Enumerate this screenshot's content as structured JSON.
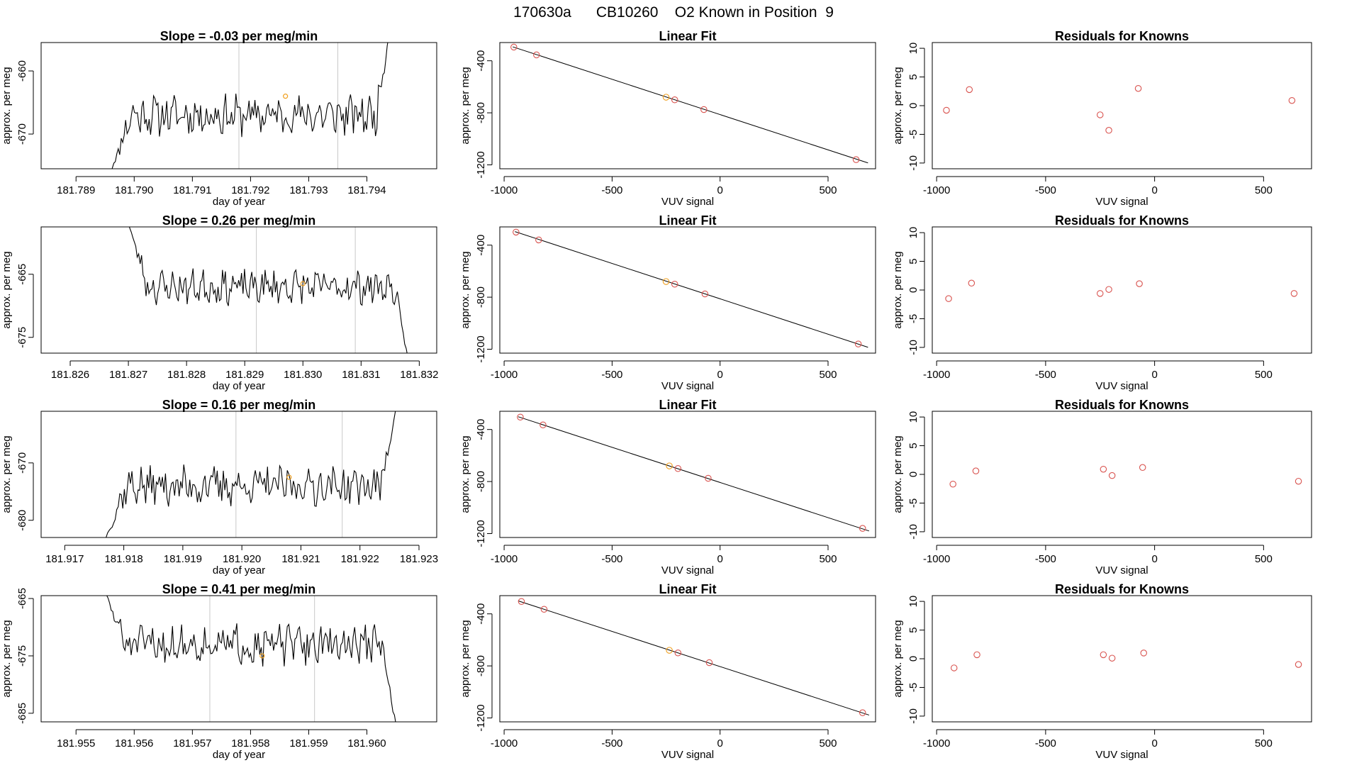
{
  "figure": {
    "title": "170630a      CB10260    O2 Known in Position  9"
  },
  "colors": {
    "line": "#000000",
    "point": "#d9534f",
    "highlight": "#f0a020",
    "grid": "#c8c8c8"
  },
  "chart_data": [
    {
      "type": "line",
      "title": "Slope =  -0.03  per meg/min",
      "xlabel": "day of year",
      "ylabel": "approx. per meg",
      "xlim": [
        181.7884,
        181.7952
      ],
      "ylim": [
        -675.5,
        -655.5
      ],
      "xticks": [
        181.789,
        181.79,
        181.791,
        181.792,
        181.793,
        181.794
      ],
      "xtick_labels": [
        "181.789",
        "181.790",
        "181.791",
        "181.792",
        "181.793",
        "181.794"
      ],
      "yticks": [
        -660,
        -670
      ],
      "ytick_labels": [
        "-660",
        "-670"
      ],
      "vlines": [
        181.7918,
        181.7935
      ],
      "x_range": [
        181.7896,
        181.7944
      ],
      "baseline": -667,
      "noise": 2.6,
      "start": -676,
      "end": -653,
      "highlight": {
        "x": 181.7926,
        "y": -664
      },
      "seed": 11
    },
    {
      "type": "line",
      "title": "Slope =  0.26  per meg/min",
      "xlabel": "day of year",
      "ylabel": "approx. per meg",
      "xlim": [
        181.8255,
        181.8323
      ],
      "ylim": [
        -677.5,
        -657.5
      ],
      "xticks": [
        181.826,
        181.827,
        181.828,
        181.829,
        181.83,
        181.831,
        181.832
      ],
      "xtick_labels": [
        "181.826",
        "181.827",
        "181.828",
        "181.829",
        "181.830",
        "181.831",
        "181.832"
      ],
      "yticks": [
        -665,
        -675
      ],
      "ytick_labels": [
        "-665",
        "-675"
      ],
      "vlines": [
        181.8292,
        181.8309
      ],
      "x_range": [
        181.827,
        181.8318
      ],
      "baseline": -667,
      "noise": 2.2,
      "start": -657,
      "end": -678,
      "highlight": {
        "x": 181.83,
        "y": -666.5
      },
      "seed": 23
    },
    {
      "type": "line",
      "title": "Slope =  0.16  per meg/min",
      "xlabel": "day of year",
      "ylabel": "approx. per meg",
      "xlim": [
        181.9166,
        181.9233
      ],
      "ylim": [
        -683,
        -661
      ],
      "xticks": [
        181.917,
        181.918,
        181.919,
        181.92,
        181.921,
        181.922,
        181.923
      ],
      "xtick_labels": [
        "181.917",
        "181.918",
        "181.919",
        "181.920",
        "181.921",
        "181.922",
        "181.923"
      ],
      "yticks": [
        -670,
        -680
      ],
      "ytick_labels": [
        "-670",
        "-680"
      ],
      "vlines": [
        181.9199,
        181.9217
      ],
      "x_range": [
        181.9177,
        181.9226
      ],
      "baseline": -674,
      "noise": 2.8,
      "start": -683,
      "end": -661,
      "highlight": {
        "x": 181.9208,
        "y": -672.5
      },
      "seed": 37
    },
    {
      "type": "line",
      "title": "Slope =  0.41  per meg/min",
      "xlabel": "day of year",
      "ylabel": "approx. per meg",
      "xlim": [
        181.9544,
        181.9612
      ],
      "ylim": [
        -686.5,
        -664.5
      ],
      "xticks": [
        181.955,
        181.956,
        181.957,
        181.958,
        181.959,
        181.96
      ],
      "xtick_labels": [
        "181.955",
        "181.956",
        "181.957",
        "181.958",
        "181.959",
        "181.960"
      ],
      "yticks": [
        -665,
        -675,
        -685
      ],
      "ytick_labels": [
        "-665",
        "-675",
        "-685"
      ],
      "vlines": [
        181.9573,
        181.9591
      ],
      "x_range": [
        181.9555,
        181.9605
      ],
      "baseline": -673,
      "noise": 2.8,
      "start": -664,
      "end": -687,
      "highlight": {
        "x": 181.9582,
        "y": -675
      },
      "seed": 51
    },
    {
      "type": "scatter",
      "title": "Linear Fit",
      "xlabel": "VUV signal",
      "ylabel": "approx. per meg",
      "xlim": [
        -1020,
        720
      ],
      "ylim": [
        -1230,
        -260
      ],
      "xticks": [
        -1000,
        -500,
        0,
        500
      ],
      "xtick_labels": [
        "-1000",
        "-500",
        "0",
        "500"
      ],
      "yticks": [
        -400,
        -800,
        -1200
      ],
      "ytick_labels": [
        "-400",
        "-800",
        "-1200"
      ],
      "points": [
        [
          -955,
          -295
        ],
        [
          -850,
          -355
        ],
        [
          -250,
          -680
        ],
        [
          -210,
          -700
        ],
        [
          -75,
          -775
        ],
        [
          630,
          -1160
        ]
      ],
      "highlight_index": 2,
      "fit_line": [
        [
          -960,
          -293
        ],
        [
          685,
          -1185
        ]
      ]
    },
    {
      "type": "scatter",
      "title": "Linear Fit",
      "xlabel": "VUV signal",
      "ylabel": "approx. per meg",
      "xlim": [
        -1020,
        720
      ],
      "ylim": [
        -1230,
        -260
      ],
      "xticks": [
        -1000,
        -500,
        0,
        500
      ],
      "xtick_labels": [
        "-1000",
        "-500",
        "0",
        "500"
      ],
      "yticks": [
        -400,
        -800,
        -1200
      ],
      "ytick_labels": [
        "-400",
        "-800",
        "-1200"
      ],
      "points": [
        [
          -945,
          -300
        ],
        [
          -840,
          -360
        ],
        [
          -250,
          -680
        ],
        [
          -210,
          -700
        ],
        [
          -70,
          -775
        ],
        [
          640,
          -1160
        ]
      ],
      "highlight_index": 2,
      "fit_line": [
        [
          -950,
          -296
        ],
        [
          685,
          -1185
        ]
      ]
    },
    {
      "type": "scatter",
      "title": "Linear Fit",
      "xlabel": "VUV signal",
      "ylabel": "approx. per meg",
      "xlim": [
        -1020,
        720
      ],
      "ylim": [
        -1230,
        -260
      ],
      "xticks": [
        -1000,
        -500,
        0,
        500
      ],
      "xtick_labels": [
        "-1000",
        "-500",
        "0",
        "500"
      ],
      "yticks": [
        -400,
        -800,
        -1200
      ],
      "ytick_labels": [
        "-400",
        "-800",
        "-1200"
      ],
      "points": [
        [
          -925,
          -305
        ],
        [
          -820,
          -365
        ],
        [
          -235,
          -680
        ],
        [
          -195,
          -700
        ],
        [
          -55,
          -775
        ],
        [
          660,
          -1160
        ]
      ],
      "highlight_index": 2,
      "fit_line": [
        [
          -935,
          -302
        ],
        [
          690,
          -1180
        ]
      ]
    },
    {
      "type": "scatter",
      "title": "Linear Fit",
      "xlabel": "VUV signal",
      "ylabel": "approx. per meg",
      "xlim": [
        -1020,
        720
      ],
      "ylim": [
        -1230,
        -260
      ],
      "xticks": [
        -1000,
        -500,
        0,
        500
      ],
      "xtick_labels": [
        "-1000",
        "-500",
        "0",
        "500"
      ],
      "yticks": [
        -400,
        -800,
        -1200
      ],
      "ytick_labels": [
        "-400",
        "-800",
        "-1200"
      ],
      "points": [
        [
          -920,
          -305
        ],
        [
          -815,
          -365
        ],
        [
          -235,
          -680
        ],
        [
          -195,
          -700
        ],
        [
          -50,
          -775
        ],
        [
          660,
          -1160
        ]
      ],
      "highlight_index": 2,
      "fit_line": [
        [
          -935,
          -300
        ],
        [
          690,
          -1178
        ]
      ]
    },
    {
      "type": "scatter",
      "title": "Residuals for Knowns",
      "xlabel": "VUV signal",
      "ylabel": "approx. per meg",
      "xlim": [
        -1020,
        720
      ],
      "ylim": [
        -11,
        11
      ],
      "xticks": [
        -1000,
        -500,
        0,
        500
      ],
      "xtick_labels": [
        "-1000",
        "-500",
        "0",
        "500"
      ],
      "yticks": [
        10,
        5,
        0,
        -5,
        -10
      ],
      "ytick_labels": [
        "10",
        "5",
        "0",
        "-5",
        "-10"
      ],
      "points": [
        [
          -955,
          -0.8
        ],
        [
          -850,
          2.8
        ],
        [
          -250,
          -1.6
        ],
        [
          -210,
          -4.3
        ],
        [
          -75,
          3.0
        ],
        [
          630,
          0.9
        ]
      ]
    },
    {
      "type": "scatter",
      "title": "Residuals for Knowns",
      "xlabel": "VUV signal",
      "ylabel": "approx. per meg",
      "xlim": [
        -1020,
        720
      ],
      "ylim": [
        -11,
        11
      ],
      "xticks": [
        -1000,
        -500,
        0,
        500
      ],
      "xtick_labels": [
        "-1000",
        "-500",
        "0",
        "500"
      ],
      "yticks": [
        10,
        5,
        0,
        -5,
        -10
      ],
      "ytick_labels": [
        "10",
        "5",
        "0",
        "-5",
        "-10"
      ],
      "points": [
        [
          -945,
          -1.5
        ],
        [
          -840,
          1.2
        ],
        [
          -250,
          -0.6
        ],
        [
          -210,
          0.1
        ],
        [
          -70,
          1.1
        ],
        [
          640,
          -0.6
        ]
      ]
    },
    {
      "type": "scatter",
      "title": "Residuals for Knowns",
      "xlabel": "VUV signal",
      "ylabel": "approx. per meg",
      "xlim": [
        -1020,
        720
      ],
      "ylim": [
        -11,
        11
      ],
      "xticks": [
        -1000,
        -500,
        0,
        500
      ],
      "xtick_labels": [
        "-1000",
        "-500",
        "0",
        "500"
      ],
      "yticks": [
        10,
        5,
        0,
        -5,
        -10
      ],
      "ytick_labels": [
        "10",
        "5",
        "0",
        "-5",
        "-10"
      ],
      "points": [
        [
          -925,
          -1.7
        ],
        [
          -820,
          0.6
        ],
        [
          -235,
          0.9
        ],
        [
          -195,
          -0.2
        ],
        [
          -55,
          1.2
        ],
        [
          660,
          -1.2
        ]
      ]
    },
    {
      "type": "scatter",
      "title": "Residuals for Knowns",
      "xlabel": "VUV signal",
      "ylabel": "approx. per meg",
      "xlim": [
        -1020,
        720
      ],
      "ylim": [
        -11,
        11
      ],
      "xticks": [
        -1000,
        -500,
        0,
        500
      ],
      "xtick_labels": [
        "-1000",
        "-500",
        "0",
        "500"
      ],
      "yticks": [
        10,
        5,
        0,
        -5,
        -10
      ],
      "ytick_labels": [
        "10",
        "5",
        "0",
        "-5",
        "-10"
      ],
      "points": [
        [
          -920,
          -1.6
        ],
        [
          -815,
          0.7
        ],
        [
          -235,
          0.7
        ],
        [
          -195,
          0.1
        ],
        [
          -50,
          1.0
        ],
        [
          660,
          -1.0
        ]
      ]
    }
  ]
}
